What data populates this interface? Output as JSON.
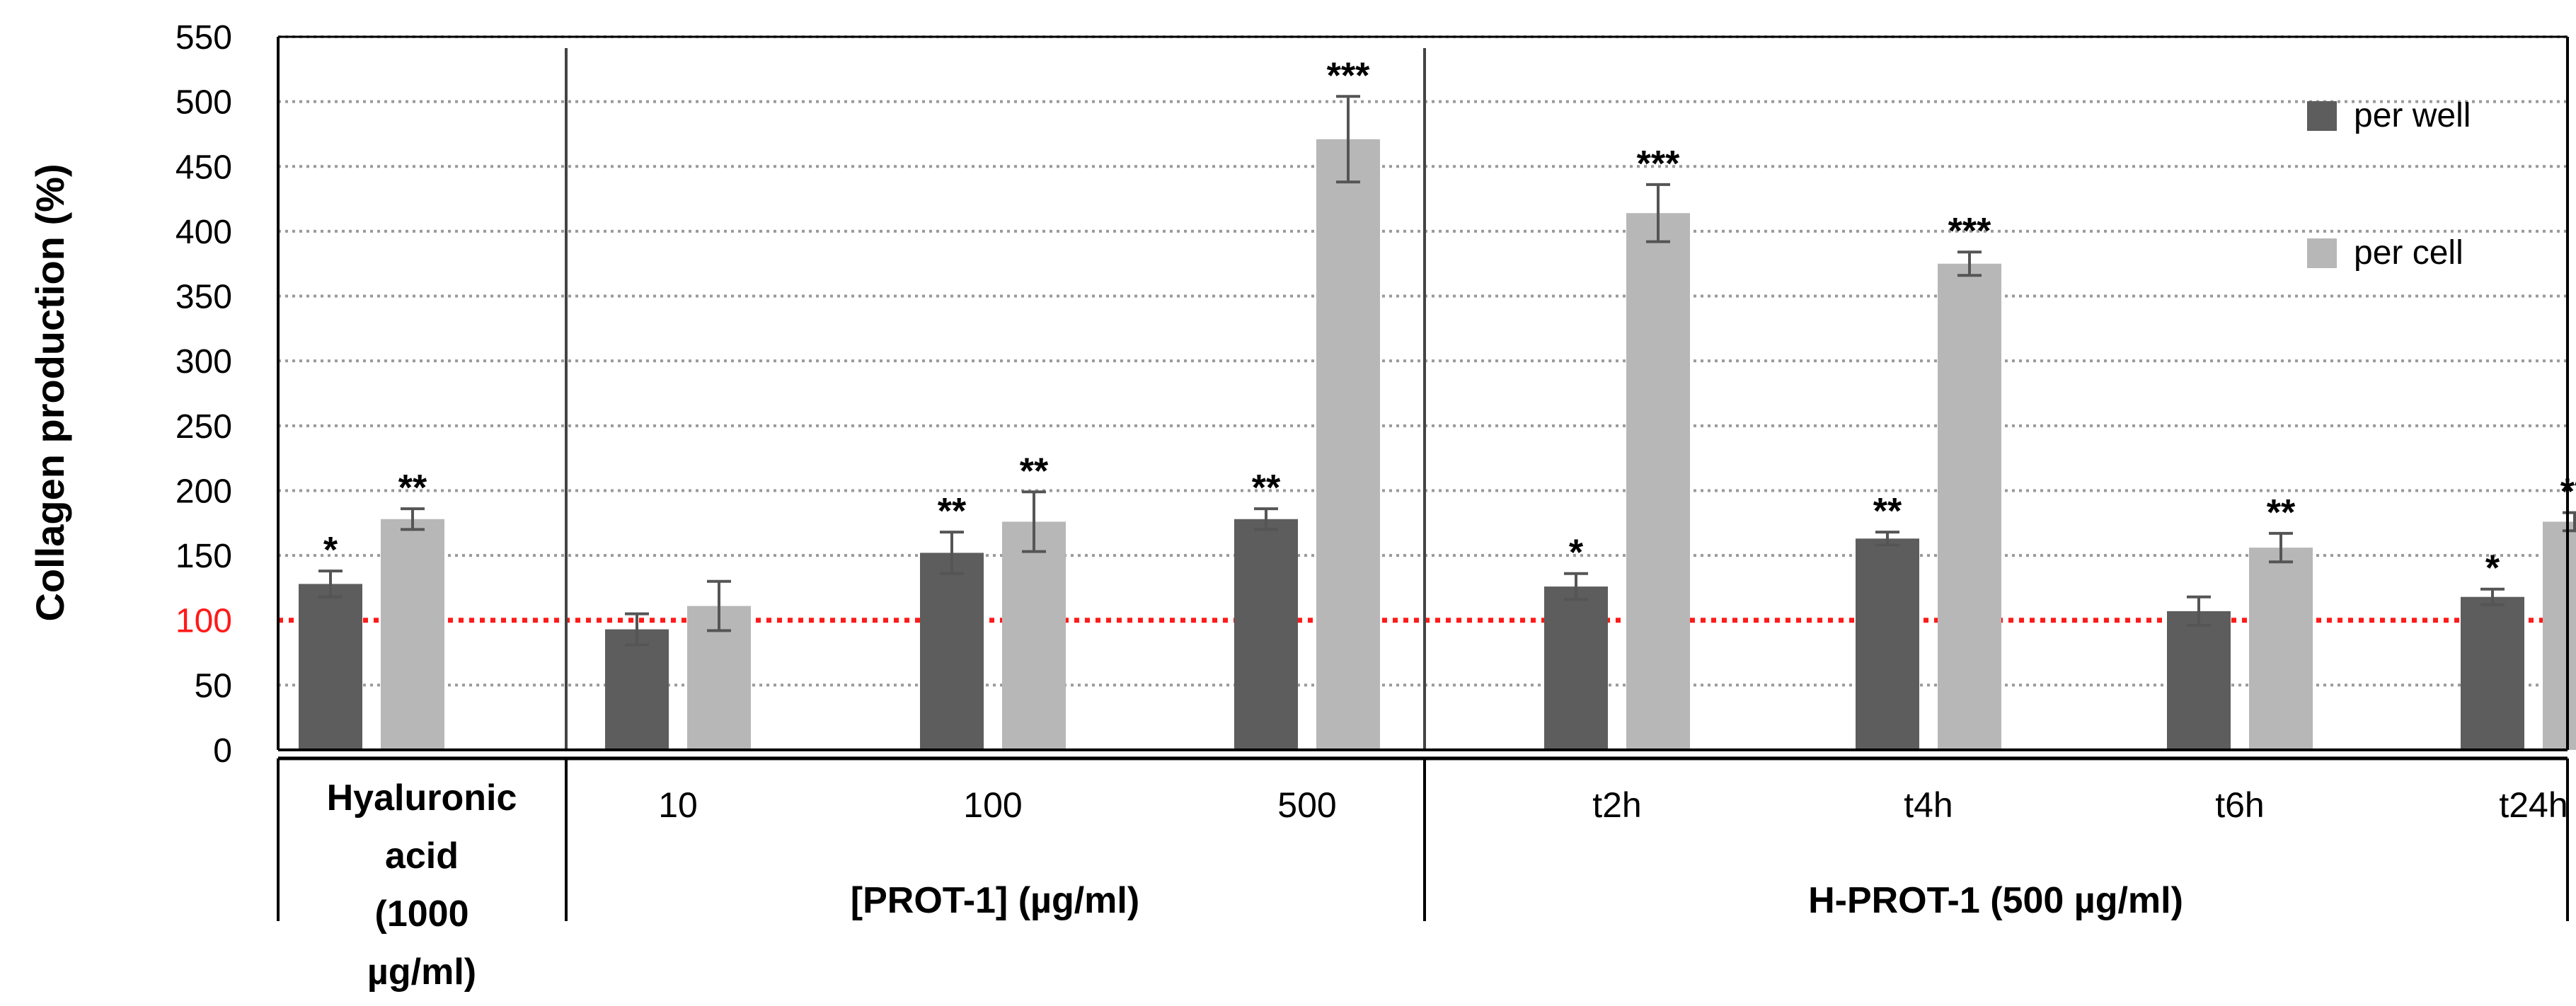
{
  "chart_data": {
    "type": "bar",
    "ylabel": "Collagen production (%)",
    "ylim": [
      0,
      550
    ],
    "yticks": [
      0,
      50,
      100,
      150,
      200,
      250,
      300,
      350,
      400,
      450,
      500,
      550
    ],
    "grid": true,
    "reference_line": {
      "value": 100,
      "color": "#ff1a1a",
      "style": "dotted"
    },
    "legend_position": "top-right",
    "series": [
      {
        "name": "per well",
        "color": "#5d5d5d"
      },
      {
        "name": "per cell",
        "color": "#b7b7b7"
      }
    ],
    "categories": [
      {
        "label": "Hyaluronic acid (1000 µg/ml)",
        "label_lines": [
          "Hyaluronic",
          "acid",
          "(1000",
          "µg/ml)"
        ],
        "bold": true,
        "values": [
          128,
          178
        ],
        "errors": [
          10,
          8
        ],
        "sig": [
          "*",
          "**"
        ]
      },
      {
        "label": "10",
        "values": [
          93,
          111
        ],
        "errors": [
          12,
          19
        ],
        "sig": [
          "",
          ""
        ]
      },
      {
        "label": "100",
        "values": [
          152,
          176
        ],
        "errors": [
          16,
          23
        ],
        "sig": [
          "**",
          "**"
        ]
      },
      {
        "label": "500",
        "values": [
          178,
          471
        ],
        "errors": [
          8,
          33
        ],
        "sig": [
          "**",
          "***"
        ]
      },
      {
        "label": "t2h",
        "values": [
          126,
          414
        ],
        "errors": [
          10,
          22
        ],
        "sig": [
          "*",
          "***"
        ]
      },
      {
        "label": "t4h",
        "values": [
          163,
          375
        ],
        "errors": [
          5,
          9
        ],
        "sig": [
          "**",
          "***"
        ]
      },
      {
        "label": "t6h",
        "values": [
          107,
          156
        ],
        "errors": [
          11,
          11
        ],
        "sig": [
          "",
          "**"
        ]
      },
      {
        "label": "t24h",
        "values": [
          118,
          176
        ],
        "errors": [
          6,
          7
        ],
        "sig": [
          "*",
          "**"
        ]
      }
    ],
    "groups": [
      {
        "label": "[PROT-1] (µg/ml)",
        "categories": [
          1,
          2,
          3
        ]
      },
      {
        "label": "H-PROT-1 (500 µg/ml)",
        "categories": [
          4,
          5,
          6,
          7
        ]
      }
    ]
  }
}
